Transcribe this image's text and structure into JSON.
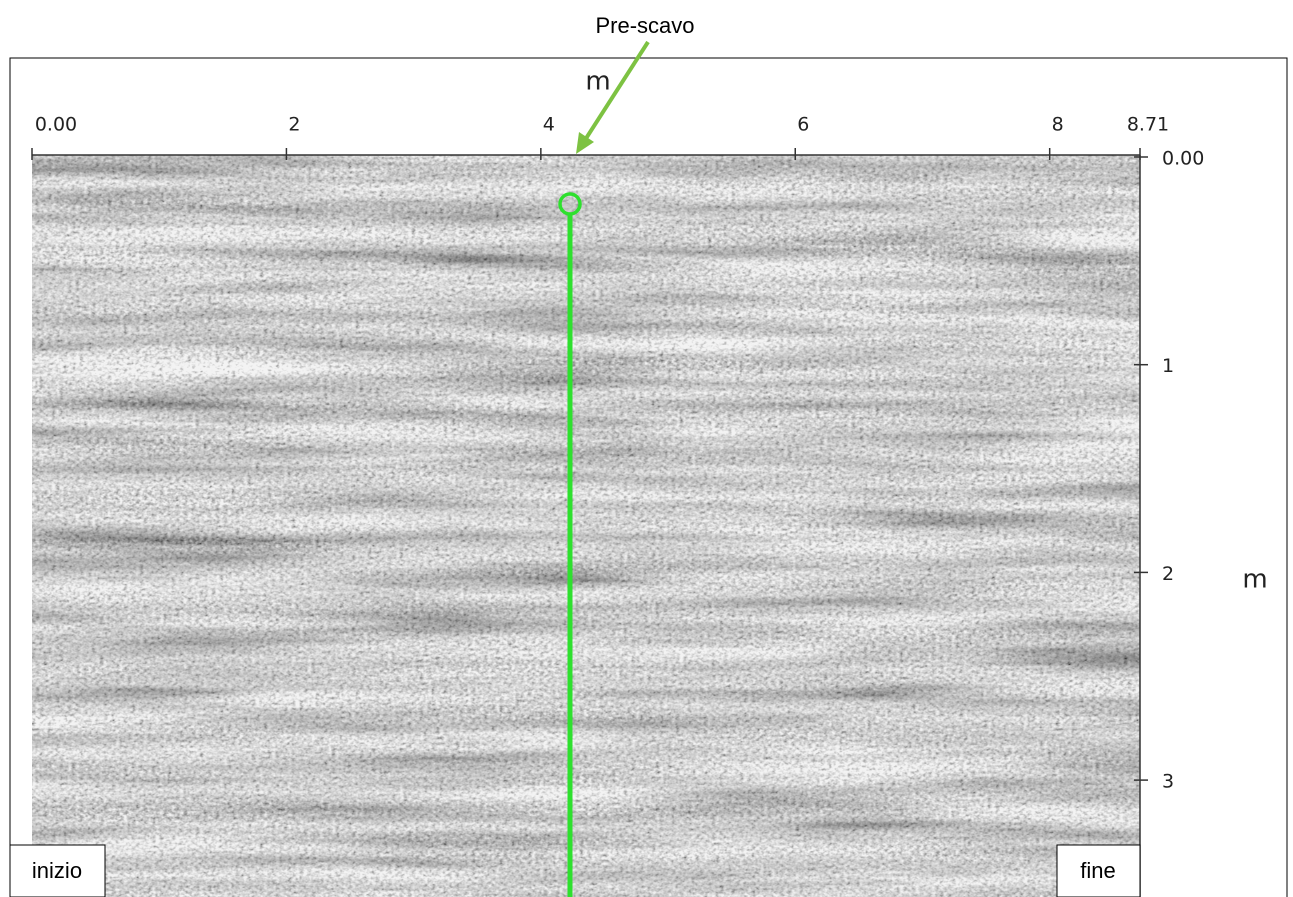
{
  "annotation": "Pre-scavo",
  "x_axis": {
    "label": "m",
    "lim": [
      0,
      8.71
    ],
    "ticks": [
      {
        "value": 0,
        "label": "0.00"
      },
      {
        "value": 2,
        "label": "2"
      },
      {
        "value": 4,
        "label": "4"
      },
      {
        "value": 6,
        "label": "6"
      },
      {
        "value": 8,
        "label": "8"
      },
      {
        "value": 8.71,
        "label": "8.71"
      }
    ]
  },
  "y_axis": {
    "label": "m",
    "ticks": [
      {
        "value": 0,
        "label": "0.00"
      },
      {
        "value": 1,
        "label": "1"
      },
      {
        "value": 2,
        "label": "2"
      },
      {
        "value": 3,
        "label": "3"
      }
    ]
  },
  "start_label": "inizio",
  "end_label": "fine"
}
